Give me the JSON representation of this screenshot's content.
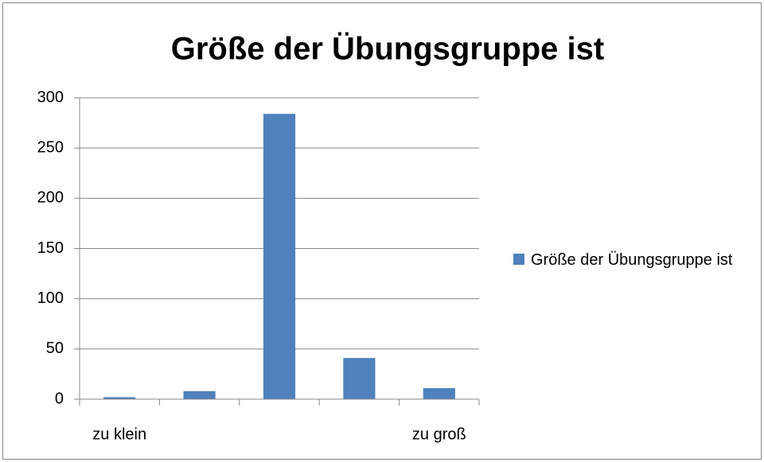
{
  "chart_data": {
    "type": "bar",
    "title": "Größe der Übungsgruppe ist",
    "categories": [
      "zu klein",
      null,
      null,
      null,
      "zu groß"
    ],
    "series": [
      {
        "name": "Größe der Übungsgruppe ist",
        "color": "#4f81bd",
        "values": [
          2,
          8,
          284,
          41,
          11
        ]
      }
    ],
    "ylim": [
      0,
      300
    ],
    "yticks": [
      0,
      50,
      100,
      150,
      200,
      250,
      300
    ],
    "grid": true,
    "legend": "right"
  }
}
